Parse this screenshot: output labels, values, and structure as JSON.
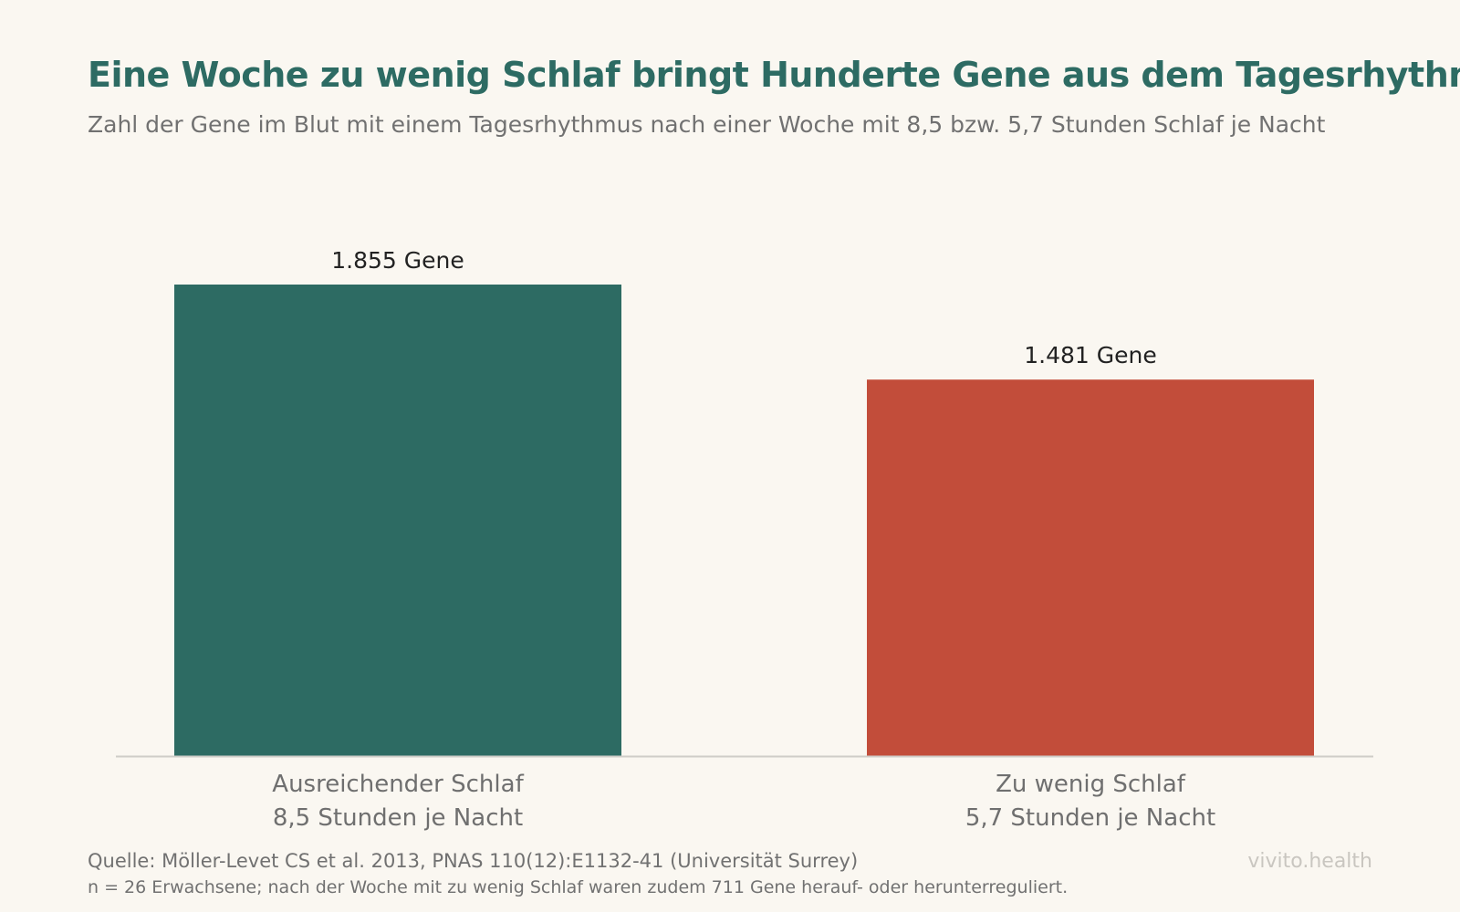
{
  "chart_data": {
    "type": "bar",
    "title": "Eine Woche zu wenig Schlaf bringt Hunderte Gene aus dem Tagesrhythmus",
    "subtitle": "Zahl der Gene im Blut mit einem Tagesrhythmus nach einer Woche mit 8,5 bzw. 5,7 Stunden Schlaf je Nacht",
    "categories": [
      [
        "Ausreichender Schlaf",
        "8,5 Stunden je Nacht"
      ],
      [
        "Zu wenig Schlaf",
        "5,7 Stunden je Nacht"
      ]
    ],
    "values": [
      1855,
      1481
    ],
    "value_labels": [
      "1.855 Gene",
      "1.481 Gene"
    ],
    "colors": [
      "#2d6b63",
      "#c24d3a"
    ],
    "ylim": [
      0,
      1855
    ],
    "grid": false,
    "legend": "none"
  },
  "footer": {
    "source": "Quelle: Möller-Levet CS et al. 2013, PNAS 110(12):E1132-41 (Universität Surrey)",
    "note": "n = 26 Erwachsene; nach der Woche mit zu wenig Schlaf waren zudem 711 Gene herauf- oder herunterreguliert.",
    "brand": "vivito.health"
  }
}
